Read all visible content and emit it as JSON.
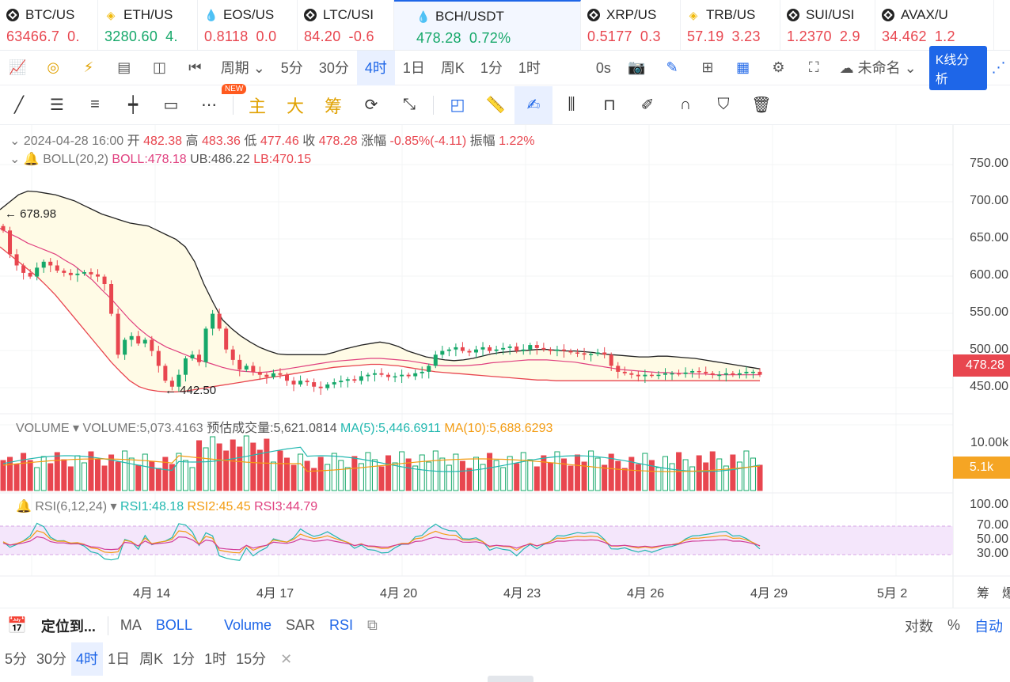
{
  "tickers": [
    {
      "symbol": "BTC/US",
      "price": "63466.7",
      "change": "0.",
      "dir": "red",
      "icon": "coin-icon",
      "w": 124
    },
    {
      "symbol": "ETH/US",
      "price": "3280.60",
      "change": "4.",
      "dir": "green",
      "icon": "gold-icon",
      "w": 126
    },
    {
      "symbol": "EOS/US",
      "price": "0.8118",
      "change": "0.0",
      "dir": "red",
      "icon": "drop-icon",
      "w": 126
    },
    {
      "symbol": "LTC/USI",
      "price": "84.20",
      "change": "-0.6",
      "dir": "red",
      "icon": "coin-icon",
      "w": 122
    },
    {
      "symbol": "BCH/USDT",
      "price": "478.28",
      "change": "0.72%",
      "dir": "green",
      "icon": "drop-icon",
      "w": 236,
      "active": true
    },
    {
      "symbol": "XRP/US",
      "price": "0.5177",
      "change": "0.3",
      "dir": "red",
      "icon": "coin-icon",
      "w": 126
    },
    {
      "symbol": "TRB/US",
      "price": "57.19",
      "change": "3.23",
      "dir": "red",
      "icon": "gold-icon",
      "w": 126
    },
    {
      "symbol": "SUI/USI",
      "price": "1.2370",
      "change": "2.9",
      "dir": "red",
      "icon": "coin-icon",
      "w": 120
    },
    {
      "symbol": "AVAX/U",
      "price": "34.462",
      "change": "1.2",
      "dir": "red",
      "icon": "coin-icon",
      "w": 150
    }
  ],
  "toolbar": {
    "period_label": "周期",
    "intervals": [
      "5分",
      "30分",
      "4时",
      "1日",
      "周K",
      "1分",
      "1时"
    ],
    "active_interval": "4时",
    "refresh": "0s",
    "layout_name": "未命名",
    "analysis_button": "K线分析"
  },
  "drawing": {
    "new_badge": "NEW",
    "labels": [
      "主",
      "大",
      "筹"
    ]
  },
  "ohlc": {
    "date": "2024-04-28 16:00",
    "open_label": "开",
    "open": "482.38",
    "high_label": "高",
    "high": "483.36",
    "low_label": "低",
    "low": "477.46",
    "close_label": "收",
    "close": "478.28",
    "chg_label": "涨幅",
    "chg": "-0.85%(-4.11)",
    "amp_label": "振幅",
    "amp": "1.22%"
  },
  "boll": {
    "label": "BOLL(20,2)",
    "mid": "BOLL:478.18",
    "ub": "UB:486.22",
    "lb": "LB:470.15"
  },
  "volume": {
    "label": "VOLUME",
    "value": "VOLUME:5,073.4163",
    "est": "预估成交量:5,621.0814",
    "ma5": "MA(5):5,446.6911",
    "ma10": "MA(10):5,688.6293",
    "axis_top": "10.00k",
    "tag": "5.1k"
  },
  "rsi": {
    "label": "RSI(6,12,24)",
    "rsi1": "RSI1:48.18",
    "rsi2": "RSI2:45.45",
    "rsi3": "RSI3:44.79",
    "axis": [
      "100.00",
      "70.00",
      "50.00",
      "30.00"
    ]
  },
  "price_axis": [
    "750.00",
    "700.00",
    "650.00",
    "600.00",
    "550.00",
    "500.00",
    "450.00"
  ],
  "current_price": "478.28",
  "high_marker": "678.98",
  "low_marker": "442.50",
  "x_labels": [
    "4月 14",
    "4月 17",
    "4月 20",
    "4月 23",
    "4月 26",
    "4月 29",
    "5月 2"
  ],
  "x_right": [
    "筹",
    "爆"
  ],
  "colors": {
    "up": "#16a86a",
    "down": "#e8464f",
    "boll_ub": "#222222",
    "boll_mid": "#e0407f",
    "boll_lb": "#e8464f",
    "band_fill": "#fffbe6"
  },
  "chart_data": {
    "type": "candlestick",
    "symbol": "BCH/USDT",
    "interval": "4时",
    "ylim": [
      440,
      760
    ],
    "x_axis": [
      "4月 14",
      "4月 17",
      "4月 20",
      "4月 23",
      "4月 26",
      "4月 29",
      "5月 2"
    ],
    "close_series": [
      672,
      640,
      625,
      615,
      610,
      622,
      630,
      625,
      618,
      615,
      612,
      614,
      616,
      613,
      610,
      600,
      560,
      505,
      525,
      530,
      520,
      525,
      510,
      490,
      470,
      462,
      478,
      500,
      505,
      495,
      540,
      560,
      540,
      512,
      498,
      485,
      490,
      482,
      478,
      475,
      480,
      478,
      470,
      465,
      470,
      468,
      462,
      460,
      465,
      468,
      470,
      472,
      470,
      476,
      478,
      480,
      478,
      475,
      476,
      478,
      476,
      480,
      482,
      490,
      505,
      510,
      512,
      515,
      510,
      508,
      512,
      515,
      510,
      512,
      514,
      516,
      510,
      512,
      518,
      514,
      512,
      510,
      512,
      510,
      508,
      507,
      505,
      506,
      508,
      505,
      490,
      482,
      480,
      478,
      476,
      478,
      477,
      478,
      480,
      480,
      479,
      481,
      483,
      482,
      480,
      478,
      478,
      480,
      478,
      480,
      482,
      482,
      478
    ],
    "boll_ub_series": [
      700,
      710,
      720,
      725,
      724,
      722,
      720,
      716,
      712,
      706,
      700,
      694,
      690,
      686,
      682,
      680,
      678,
      672,
      666,
      660,
      650,
      630,
      600,
      575,
      552,
      540,
      530,
      522,
      515,
      510,
      506,
      505,
      505,
      505,
      505,
      505,
      508,
      512,
      515,
      518,
      520,
      522,
      520,
      516,
      510,
      506,
      502,
      500,
      498,
      497,
      498,
      500,
      503,
      506,
      508,
      509,
      510,
      511,
      512,
      512,
      511,
      510,
      510,
      509,
      508,
      506,
      505,
      504,
      503,
      502,
      502,
      503,
      503,
      502,
      501,
      500,
      498,
      496,
      494,
      492,
      490,
      488,
      486
    ],
    "boll_mid_series": [
      675,
      668,
      662,
      655,
      650,
      645,
      640,
      632,
      625,
      615,
      605,
      592,
      580,
      566,
      552,
      540,
      530,
      522,
      515,
      510,
      505,
      500,
      496,
      492,
      488,
      485,
      483,
      482,
      481,
      482,
      484,
      486,
      488,
      490,
      492,
      494,
      496,
      497,
      498,
      499,
      500,
      500,
      499,
      498,
      497,
      495,
      493,
      491,
      490,
      490,
      490,
      491,
      492,
      494,
      495,
      496,
      497,
      498,
      498,
      498,
      497,
      496,
      495,
      493,
      491,
      489,
      487,
      485,
      484,
      483,
      482,
      481,
      481,
      480,
      480,
      479,
      479,
      478,
      478,
      478,
      478,
      478,
      478
    ],
    "boll_lb_series": [
      650,
      640,
      630,
      620,
      610,
      598,
      585,
      570,
      555,
      540,
      525,
      510,
      495,
      482,
      470,
      462,
      458,
      456,
      455,
      455,
      456,
      458,
      460,
      462,
      464,
      466,
      468,
      470,
      472,
      474,
      476,
      478,
      480,
      482,
      484,
      486,
      488,
      489,
      490,
      491,
      492,
      492,
      491,
      490,
      488,
      486,
      484,
      482,
      481,
      480,
      479,
      478,
      477,
      476,
      475,
      474,
      473,
      472,
      471,
      471,
      470,
      470,
      470,
      470,
      470,
      470,
      470,
      470,
      470,
      470,
      470,
      470,
      470,
      470,
      470,
      470,
      470,
      470,
      470,
      470,
      470,
      470,
      470
    ],
    "volume_ma_note": "MA(5) MA(10)",
    "rsi_bands": [
      70,
      30
    ]
  },
  "bottom": {
    "locate": "定位到...",
    "indicators": [
      "MA",
      "BOLL",
      "Volume",
      "SAR",
      "RSI"
    ],
    "active_indicators": [
      "BOLL",
      "Volume",
      "RSI"
    ],
    "right": [
      "对数",
      "%",
      "自动"
    ],
    "intervals": [
      "5分",
      "30分",
      "4时",
      "1日",
      "周K",
      "1分",
      "1时",
      "15分"
    ],
    "active_interval": "4时"
  }
}
